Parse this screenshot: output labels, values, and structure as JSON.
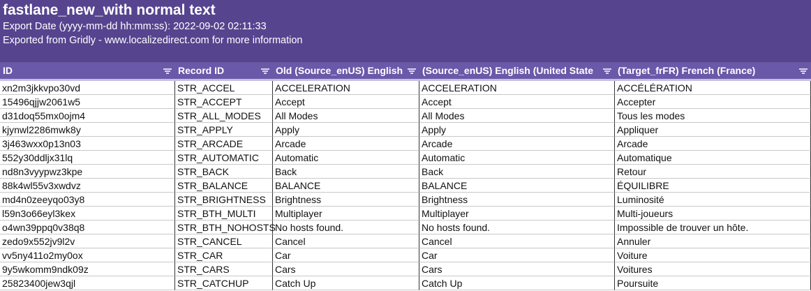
{
  "header": {
    "title": "fastlane_new_with normal text",
    "export_date": "Export Date (yyyy-mm-dd hh:mm:ss): 2022-09-02 02:11:33",
    "source": "Exported from Gridly - www.localizedirect.com for more information"
  },
  "table": {
    "columns": [
      "ID",
      "Record ID",
      "Old (Source_enUS) English",
      "(Source_enUS) English (United State",
      "(Target_frFR) French (France)"
    ],
    "rows": [
      [
        "xn2m3jkkvpo30vd",
        "STR_ACCEL",
        "ACCELERATION",
        "ACCELERATION",
        "ACCÉLÉRATION"
      ],
      [
        "15496qjjw2061w5",
        "STR_ACCEPT",
        "Accept",
        "Accept",
        "Accepter"
      ],
      [
        "d31doq55mx0ojm4",
        "STR_ALL_MODES",
        "All Modes",
        "All Modes",
        "Tous les modes"
      ],
      [
        "kjynwl2286mwk8y",
        "STR_APPLY",
        "Apply",
        "Apply",
        "Appliquer"
      ],
      [
        "3j463wxx0p13n03",
        "STR_ARCADE",
        "Arcade",
        "Arcade",
        "Arcade"
      ],
      [
        "552y30ddljx31lq",
        "STR_AUTOMATIC",
        "Automatic",
        "Automatic",
        "Automatique"
      ],
      [
        "nd8n3vyypwz3kpe",
        "STR_BACK",
        "Back",
        "Back",
        "Retour"
      ],
      [
        "88k4wl55v3xwdvz",
        "STR_BALANCE",
        "BALANCE",
        "BALANCE",
        "ÉQUILIBRE"
      ],
      [
        "md4n0zeeyqo03y8",
        "STR_BRIGHTNESS",
        "Brightness",
        "Brightness",
        "Luminosité"
      ],
      [
        "l59n3o66eyl3kex",
        "STR_BTH_MULTI",
        "Multiplayer",
        "Multiplayer",
        "Multi-joueurs"
      ],
      [
        "o4wn39ppq0v38q8",
        "STR_BTH_NOHOSTS",
        "No hosts found.",
        "No hosts found.",
        "Impossible de trouver un hôte."
      ],
      [
        "zedo9x552jv9l2v",
        "STR_CANCEL",
        "Cancel",
        "Cancel",
        "Annuler"
      ],
      [
        "vv5ny411o2my0ox",
        "STR_CAR",
        "Car",
        "Car",
        "Voiture"
      ],
      [
        "9y5wkomm9ndk09z",
        "STR_CARS",
        "Cars",
        "Cars",
        "Voitures"
      ],
      [
        "25823400jew3qjl",
        "STR_CATCHUP",
        "Catch Up",
        "Catch Up",
        "Poursuite"
      ]
    ]
  }
}
